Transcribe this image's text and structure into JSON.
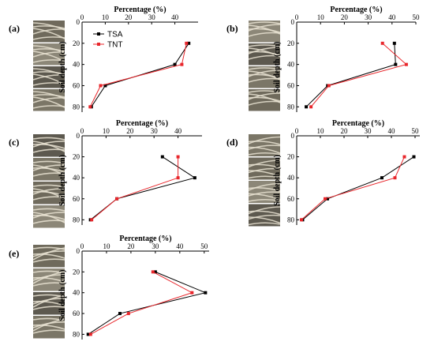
{
  "chart_data": [
    {
      "type": "line",
      "panel_label": "(a)",
      "xlabel": "Percentage (%)",
      "ylabel": "Soil depth (cm)",
      "xlim": [
        0,
        50
      ],
      "ylim": [
        0,
        85
      ],
      "xticks": [
        0,
        10,
        20,
        30,
        40
      ],
      "yticks": [
        0,
        20,
        40,
        60,
        80
      ],
      "y": [
        20,
        40,
        60,
        80
      ],
      "legend": true,
      "legend_position": "top-left",
      "series": [
        {
          "name": "TSA",
          "color": "#000000",
          "values": [
            46,
            40,
            10,
            4
          ]
        },
        {
          "name": "TNT",
          "color": "#e8262b",
          "values": [
            45,
            43,
            8,
            3.5
          ]
        }
      ]
    },
    {
      "type": "line",
      "panel_label": "(b)",
      "xlabel": "Percentage (%)",
      "ylabel": "Soil depth (cm)",
      "xlim": [
        0,
        50
      ],
      "ylim": [
        0,
        85
      ],
      "xticks": [
        0,
        10,
        20,
        30,
        40,
        50
      ],
      "yticks": [
        0,
        20,
        40,
        60,
        80
      ],
      "y": [
        20,
        40,
        60,
        80
      ],
      "legend": false,
      "series": [
        {
          "name": "TSA",
          "color": "#000000",
          "values": [
            41,
            41.5,
            13,
            4
          ]
        },
        {
          "name": "TNT",
          "color": "#e8262b",
          "values": [
            36,
            46,
            13.5,
            6
          ]
        }
      ]
    },
    {
      "type": "line",
      "panel_label": "(c)",
      "xlabel": "Percentage (%)",
      "ylabel": "Soil depth (cm)",
      "xlim": [
        0,
        50
      ],
      "ylim": [
        0,
        85
      ],
      "xticks": [
        0,
        10,
        20,
        30,
        40
      ],
      "yticks": [
        0,
        20,
        40,
        60,
        80
      ],
      "y": [
        20,
        40,
        60,
        80
      ],
      "legend": false,
      "series": [
        {
          "name": "TSA",
          "color": "#000000",
          "values": [
            33.5,
            47,
            14.5,
            3.5
          ]
        },
        {
          "name": "TNT",
          "color": "#e8262b",
          "values": [
            40,
            40,
            14.5,
            4
          ]
        }
      ]
    },
    {
      "type": "line",
      "panel_label": "(d)",
      "xlabel": "Percentage (%)",
      "ylabel": "Soil depth (cm)",
      "xlim": [
        0,
        52
      ],
      "ylim": [
        0,
        85
      ],
      "xticks": [
        0,
        10,
        20,
        30,
        40,
        50
      ],
      "yticks": [
        0,
        20,
        40,
        60,
        80
      ],
      "y": [
        20,
        40,
        60,
        80
      ],
      "legend": false,
      "series": [
        {
          "name": "TSA",
          "color": "#000000",
          "values": [
            49.5,
            36,
            13,
            2.5
          ]
        },
        {
          "name": "TNT",
          "color": "#e8262b",
          "values": [
            45.5,
            41.5,
            12,
            2
          ]
        }
      ]
    },
    {
      "type": "line",
      "panel_label": "(e)",
      "xlabel": "Percentage (%)",
      "ylabel": "Soil depth (cm)",
      "xlim": [
        0,
        52
      ],
      "ylim": [
        0,
        85
      ],
      "xticks": [
        0,
        10,
        20,
        30,
        40,
        50
      ],
      "yticks": [
        0,
        20,
        40,
        60,
        80
      ],
      "y": [
        20,
        40,
        60,
        80
      ],
      "legend": false,
      "series": [
        {
          "name": "TSA",
          "color": "#000000",
          "values": [
            30,
            50.5,
            15.5,
            2.5
          ]
        },
        {
          "name": "TNT",
          "color": "#e8262b",
          "values": [
            29,
            45,
            19,
            3.5
          ]
        }
      ]
    }
  ]
}
